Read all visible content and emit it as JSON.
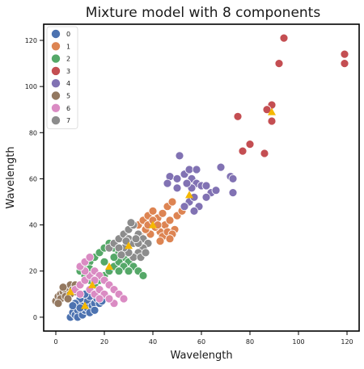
{
  "chart_data": {
    "type": "scatter",
    "title": "Mixture model with 8 components",
    "xlabel": "Wavelength",
    "ylabel": "Wavelength",
    "xlim": [
      -5,
      125
    ],
    "ylim": [
      -6,
      127
    ],
    "xticks": [
      "0",
      "20",
      "40",
      "60",
      "80",
      "100",
      "120"
    ],
    "yticks": [
      "0",
      "20",
      "40",
      "60",
      "80",
      "100",
      "120"
    ],
    "legend": {
      "placement": "top-left",
      "entries": [
        "0",
        "1",
        "2",
        "3",
        "4",
        "5",
        "6",
        "7"
      ]
    },
    "colors": {
      "0": "#4c72b0",
      "1": "#dd8452",
      "2": "#55a868",
      "3": "#c44e52",
      "4": "#8172b3",
      "5": "#937860",
      "6": "#da8bc3",
      "7": "#8c8c8c",
      "centroid": "#f5b800"
    },
    "series": [
      {
        "name": "0",
        "points": [
          [
            6,
            0
          ],
          [
            7,
            2
          ],
          [
            8,
            1
          ],
          [
            9,
            3
          ],
          [
            10,
            5
          ],
          [
            11,
            6
          ],
          [
            12,
            8
          ],
          [
            13,
            7
          ],
          [
            14,
            9
          ],
          [
            9,
            0
          ],
          [
            11,
            1
          ],
          [
            12,
            3
          ],
          [
            13,
            4
          ],
          [
            15,
            5
          ],
          [
            16,
            6
          ],
          [
            17,
            8
          ],
          [
            10,
            8
          ],
          [
            8,
            6
          ],
          [
            7,
            5
          ],
          [
            14,
            2
          ],
          [
            16,
            3
          ],
          [
            18,
            6
          ],
          [
            19,
            7
          ],
          [
            12,
            10
          ],
          [
            10,
            4
          ]
        ]
      },
      {
        "name": "1",
        "points": [
          [
            34,
            40
          ],
          [
            36,
            42
          ],
          [
            38,
            44
          ],
          [
            40,
            46
          ],
          [
            42,
            43
          ],
          [
            44,
            45
          ],
          [
            46,
            48
          ],
          [
            48,
            50
          ],
          [
            45,
            40
          ],
          [
            47,
            42
          ],
          [
            49,
            38
          ],
          [
            43,
            37
          ],
          [
            41,
            39
          ],
          [
            39,
            36
          ],
          [
            37,
            38
          ],
          [
            35,
            35
          ],
          [
            44,
            35
          ],
          [
            46,
            37
          ],
          [
            48,
            36
          ],
          [
            50,
            44
          ],
          [
            52,
            46
          ],
          [
            38,
            40
          ],
          [
            40,
            42
          ],
          [
            42,
            40
          ],
          [
            47,
            34
          ],
          [
            43,
            33
          ]
        ]
      },
      {
        "name": "2",
        "points": [
          [
            10,
            20
          ],
          [
            12,
            22
          ],
          [
            14,
            24
          ],
          [
            16,
            26
          ],
          [
            18,
            28
          ],
          [
            20,
            30
          ],
          [
            22,
            32
          ],
          [
            24,
            30
          ],
          [
            26,
            28
          ],
          [
            28,
            26
          ],
          [
            30,
            24
          ],
          [
            32,
            22
          ],
          [
            34,
            20
          ],
          [
            36,
            18
          ],
          [
            12,
            18
          ],
          [
            14,
            16
          ],
          [
            16,
            14
          ],
          [
            18,
            16
          ],
          [
            20,
            18
          ],
          [
            22,
            20
          ],
          [
            24,
            22
          ],
          [
            26,
            24
          ],
          [
            28,
            22
          ],
          [
            30,
            20
          ],
          [
            20,
            24
          ],
          [
            16,
            20
          ],
          [
            14,
            21
          ],
          [
            24,
            26
          ],
          [
            26,
            20
          ],
          [
            32,
            26
          ]
        ]
      },
      {
        "name": "3",
        "points": [
          [
            94,
            121
          ],
          [
            119,
            114
          ],
          [
            119,
            110
          ],
          [
            92,
            110
          ],
          [
            89,
            92
          ],
          [
            87,
            90
          ],
          [
            89,
            85
          ],
          [
            86,
            71
          ],
          [
            80,
            75
          ],
          [
            77,
            72
          ],
          [
            75,
            87
          ]
        ]
      },
      {
        "name": "4",
        "points": [
          [
            51,
            70
          ],
          [
            47,
            61
          ],
          [
            46,
            58
          ],
          [
            50,
            60
          ],
          [
            53,
            62
          ],
          [
            55,
            64
          ],
          [
            56,
            60
          ],
          [
            58,
            58
          ],
          [
            60,
            57
          ],
          [
            62,
            57
          ],
          [
            64,
            54
          ],
          [
            66,
            55
          ],
          [
            68,
            65
          ],
          [
            72,
            61
          ],
          [
            73,
            60
          ],
          [
            73,
            54
          ],
          [
            59,
            48
          ],
          [
            57,
            46
          ],
          [
            55,
            50
          ],
          [
            53,
            48
          ],
          [
            57,
            52
          ],
          [
            58,
            64
          ],
          [
            62,
            52
          ],
          [
            56,
            56
          ],
          [
            54,
            58
          ],
          [
            50,
            56
          ]
        ]
      },
      {
        "name": "5",
        "points": [
          [
            0,
            7
          ],
          [
            1,
            9
          ],
          [
            2,
            10
          ],
          [
            3,
            11
          ],
          [
            4,
            12
          ],
          [
            5,
            13
          ],
          [
            6,
            14
          ],
          [
            7,
            12
          ],
          [
            8,
            11
          ],
          [
            2,
            8
          ],
          [
            4,
            9
          ],
          [
            6,
            10
          ],
          [
            1,
            6
          ],
          [
            3,
            13
          ],
          [
            5,
            8
          ],
          [
            8,
            14
          ]
        ]
      },
      {
        "name": "6",
        "points": [
          [
            8,
            12
          ],
          [
            10,
            14
          ],
          [
            12,
            16
          ],
          [
            14,
            18
          ],
          [
            16,
            20
          ],
          [
            18,
            18
          ],
          [
            20,
            16
          ],
          [
            22,
            14
          ],
          [
            24,
            12
          ],
          [
            26,
            10
          ],
          [
            28,
            8
          ],
          [
            14,
            12
          ],
          [
            16,
            10
          ],
          [
            18,
            12
          ],
          [
            20,
            10
          ],
          [
            12,
            20
          ],
          [
            10,
            22
          ],
          [
            12,
            24
          ],
          [
            14,
            26
          ],
          [
            24,
            6
          ],
          [
            22,
            8
          ],
          [
            10,
            10
          ],
          [
            16,
            16
          ],
          [
            18,
            8
          ]
        ]
      },
      {
        "name": "7",
        "points": [
          [
            22,
            30
          ],
          [
            24,
            32
          ],
          [
            26,
            34
          ],
          [
            28,
            36
          ],
          [
            30,
            38
          ],
          [
            32,
            40
          ],
          [
            34,
            36
          ],
          [
            36,
            34
          ],
          [
            38,
            32
          ],
          [
            36,
            30
          ],
          [
            34,
            28
          ],
          [
            32,
            26
          ],
          [
            30,
            28
          ],
          [
            28,
            30
          ],
          [
            30,
            34
          ],
          [
            32,
            32
          ],
          [
            34,
            32
          ],
          [
            26,
            30
          ],
          [
            35,
            26
          ],
          [
            31,
            41
          ],
          [
            37,
            28
          ],
          [
            29,
            33
          ],
          [
            27,
            27
          ],
          [
            33,
            34
          ]
        ]
      }
    ],
    "centroids": [
      [
        12,
        5
      ],
      [
        40,
        40
      ],
      [
        22,
        22
      ],
      [
        89,
        89
      ],
      [
        55,
        53
      ],
      [
        6,
        11
      ],
      [
        15,
        14
      ],
      [
        30,
        31
      ]
    ]
  }
}
